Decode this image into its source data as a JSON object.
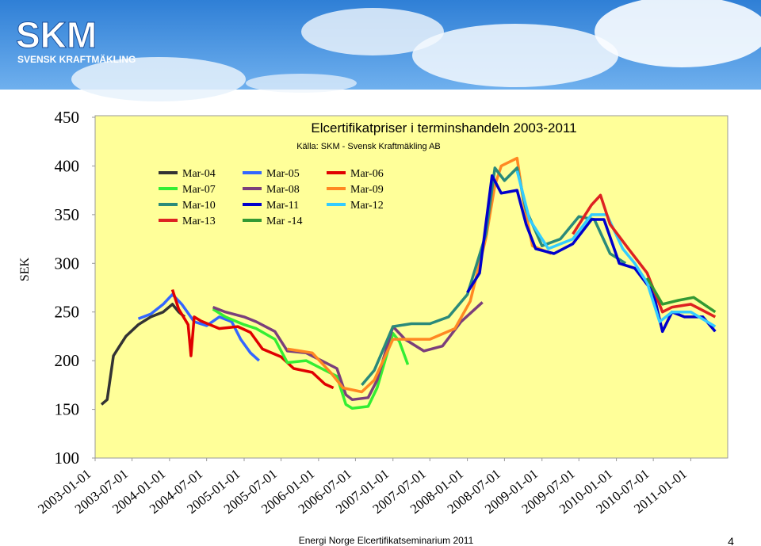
{
  "header": {
    "logo": "SKM",
    "tagline": "SVENSK KRAFTMÄKLING"
  },
  "footer": "Energi Norge Elcertifikatseminarium 2011",
  "page_number": "4",
  "chart_data": {
    "type": "line",
    "title": "Elcertifikatpriser i terminshandeln 2003-2011",
    "subtitle": "Källa: SKM - Svensk Kraftmäkling AB",
    "y_label": "SEK",
    "ylim": [
      100,
      450
    ],
    "yticks": [
      100,
      150,
      200,
      250,
      300,
      350,
      400,
      450
    ],
    "xlim": [
      "2003-01-01",
      "2011-07-01"
    ],
    "xticks": [
      "2003-01-01",
      "2003-07-01",
      "2004-01-01",
      "2004-07-01",
      "2005-01-01",
      "2005-07-01",
      "2006-01-01",
      "2006-07-01",
      "2007-01-01",
      "2007-07-01",
      "2008-01-01",
      "2008-07-01",
      "2009-01-01",
      "2009-07-01",
      "2010-01-01",
      "2010-07-01",
      "2011-01-01"
    ],
    "background": "#ffff99",
    "series": [
      {
        "name": "Mar-04",
        "color": "#333333",
        "x": [
          "2003-02-01",
          "2003-03-01",
          "2003-04-01",
          "2003-05-01",
          "2003-06-01",
          "2003-08-01",
          "2003-10-01",
          "2003-12-01",
          "2004-01-15",
          "2004-02-15",
          "2004-03-15"
        ],
        "values": [
          155,
          160,
          205,
          215,
          225,
          237,
          245,
          250,
          258,
          250,
          245
        ]
      },
      {
        "name": "Mar-05",
        "color": "#3366ff",
        "x": [
          "2003-08-01",
          "2003-10-01",
          "2003-12-01",
          "2004-01-15",
          "2004-03-01",
          "2004-05-01",
          "2004-07-01",
          "2004-09-01",
          "2004-11-01",
          "2004-12-15",
          "2005-02-01",
          "2005-03-15"
        ],
        "values": [
          243,
          248,
          258,
          268,
          258,
          240,
          236,
          245,
          240,
          222,
          208,
          200
        ]
      },
      {
        "name": "Mar-06",
        "color": "#e00000",
        "x": [
          "2004-01-15",
          "2004-02-15",
          "2004-04-01",
          "2004-04-15",
          "2004-05-01",
          "2004-06-01",
          "2004-09-01",
          "2004-12-01",
          "2005-02-01",
          "2005-04-01",
          "2005-07-01",
          "2005-09-01",
          "2005-12-01",
          "2006-02-01",
          "2006-03-15"
        ],
        "values": [
          273,
          253,
          237,
          205,
          245,
          241,
          233,
          235,
          229,
          212,
          204,
          192,
          188,
          176,
          172
        ]
      },
      {
        "name": "Mar-07",
        "color": "#33ee33",
        "x": [
          "2004-08-01",
          "2004-10-01",
          "2005-01-01",
          "2005-03-01",
          "2005-06-01",
          "2005-08-01",
          "2005-11-01",
          "2006-01-15",
          "2006-04-01",
          "2006-05-15",
          "2006-06-15",
          "2006-09-01",
          "2006-10-15",
          "2007-01-01",
          "2007-02-01",
          "2007-03-15"
        ],
        "values": [
          253,
          245,
          237,
          233,
          222,
          198,
          200,
          192,
          184,
          155,
          151,
          153,
          172,
          228,
          220,
          196
        ]
      },
      {
        "name": "Mar-08",
        "color": "#7b3f7b",
        "x": [
          "2004-08-01",
          "2004-10-01",
          "2005-01-01",
          "2005-03-01",
          "2005-06-01",
          "2005-08-01",
          "2005-11-01",
          "2006-01-15",
          "2006-04-01",
          "2006-05-15",
          "2006-06-15",
          "2006-09-01",
          "2006-10-15",
          "2007-01-01",
          "2007-03-01",
          "2007-06-01",
          "2007-09-01",
          "2007-12-01",
          "2008-03-15"
        ],
        "values": [
          255,
          250,
          245,
          240,
          230,
          210,
          208,
          200,
          192,
          165,
          160,
          162,
          180,
          235,
          222,
          210,
          215,
          240,
          260
        ]
      },
      {
        "name": "Mar-09",
        "color": "#ff8822",
        "x": [
          "2005-08-01",
          "2005-12-01",
          "2006-03-01",
          "2006-05-01",
          "2006-08-01",
          "2006-10-01",
          "2007-01-01",
          "2007-07-01",
          "2007-11-01",
          "2008-01-15",
          "2008-04-01",
          "2008-05-15",
          "2008-06-15",
          "2008-09-01",
          "2008-10-01",
          "2008-11-15",
          "2009-02-15"
        ],
        "values": [
          212,
          208,
          188,
          172,
          168,
          180,
          222,
          222,
          233,
          261,
          326,
          380,
          400,
          408,
          365,
          318,
          310
        ]
      },
      {
        "name": "Mar-10",
        "color": "#2a8a7a",
        "x": [
          "2006-08-01",
          "2006-10-01",
          "2007-01-01",
          "2007-04-01",
          "2007-07-01",
          "2007-10-01",
          "2008-01-01",
          "2008-04-01",
          "2008-05-15",
          "2008-07-01",
          "2008-09-01",
          "2008-10-15",
          "2009-01-01",
          "2009-04-01",
          "2009-07-01",
          "2009-09-15",
          "2009-12-01",
          "2010-02-15"
        ],
        "values": [
          175,
          190,
          235,
          238,
          238,
          245,
          268,
          330,
          398,
          385,
          398,
          355,
          318,
          325,
          348,
          345,
          310,
          300
        ]
      },
      {
        "name": "Mar-11",
        "color": "#0000cc",
        "x": [
          "2008-01-01",
          "2008-03-01",
          "2008-05-01",
          "2008-06-15",
          "2008-09-01",
          "2008-10-15",
          "2008-12-01",
          "2009-03-01",
          "2009-06-01",
          "2009-09-01",
          "2009-11-01",
          "2010-01-15",
          "2010-04-01",
          "2010-07-01",
          "2010-08-15",
          "2010-10-01",
          "2010-12-01",
          "2011-03-01",
          "2011-05-01"
        ],
        "values": [
          270,
          290,
          390,
          372,
          375,
          340,
          315,
          310,
          320,
          345,
          345,
          300,
          295,
          270,
          230,
          250,
          245,
          245,
          230
        ]
      },
      {
        "name": "Mar-12",
        "color": "#33ccff",
        "x": [
          "2008-09-01",
          "2008-11-01",
          "2009-02-01",
          "2009-06-01",
          "2009-09-01",
          "2009-11-15",
          "2010-02-01",
          "2010-04-01",
          "2010-06-01",
          "2010-08-01",
          "2010-10-01",
          "2011-01-01",
          "2011-05-01"
        ],
        "values": [
          395,
          345,
          315,
          325,
          350,
          350,
          315,
          300,
          280,
          240,
          250,
          250,
          235
        ]
      },
      {
        "name": "Mar-13",
        "color": "#dd2222",
        "x": [
          "2009-06-01",
          "2009-09-01",
          "2009-10-15",
          "2009-12-01",
          "2010-03-01",
          "2010-06-01",
          "2010-08-15",
          "2010-10-01",
          "2011-01-01",
          "2011-05-01"
        ],
        "values": [
          330,
          360,
          370,
          340,
          315,
          290,
          250,
          255,
          258,
          245
        ]
      },
      {
        "name": "Mar -14",
        "color": "#339933",
        "x": [
          "2010-06-01",
          "2010-08-15",
          "2010-11-01",
          "2011-01-15",
          "2011-05-01"
        ],
        "values": [
          285,
          258,
          262,
          265,
          250
        ]
      }
    ]
  }
}
